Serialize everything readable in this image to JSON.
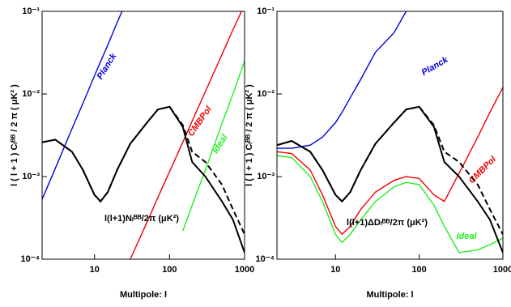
{
  "chart_data": [
    {
      "type": "line",
      "xscale": "log",
      "yscale": "log",
      "xlabel": "Multipole: l",
      "ylabel": "l ( l + 1 ) Cₗᴮᴮ / 2 π ( μK² )",
      "xlim": [
        2,
        1000
      ],
      "ylim": [
        0.0001,
        0.1
      ],
      "xticks": [
        10,
        100,
        1000
      ],
      "yticks": [
        {
          "value": 0.0001,
          "label": "10⁻⁴"
        },
        {
          "value": 0.001,
          "label": "10⁻³"
        },
        {
          "value": 0.01,
          "label": "10⁻²"
        },
        {
          "value": 0.1,
          "label": "10⁻¹"
        }
      ],
      "x": [
        2,
        3,
        5,
        7,
        10,
        12,
        15,
        20,
        30,
        50,
        70,
        100,
        150,
        200,
        300,
        500,
        700,
        1000
      ],
      "series": [
        {
          "name": "Planck",
          "color": "#0000dd",
          "values": [
            0.00053,
            0.00126,
            0.0038,
            0.0077,
            0.0166,
            0.0245,
            0.039,
            0.073,
            0.17,
            null,
            null,
            null,
            null,
            null,
            null,
            null,
            null,
            null
          ]
        },
        {
          "name": "CMBPol",
          "color": "#ee0000",
          "values": [
            null,
            null,
            null,
            null,
            null,
            null,
            null,
            null,
            0.0001,
            0.00028,
            0.00056,
            0.00115,
            0.0026,
            0.0047,
            0.0107,
            0.03,
            0.06,
            0.12
          ]
        },
        {
          "name": "Ideal",
          "color": "#22ee22",
          "values": [
            null,
            null,
            null,
            null,
            null,
            null,
            null,
            null,
            null,
            null,
            null,
            null,
            0.00022,
            0.00045,
            0.0012,
            0.0044,
            0.01,
            0.025
          ]
        },
        {
          "color": "#000000",
          "values": [
            0.0026,
            0.0028,
            0.002,
            0.0012,
            0.0006,
            0.0005,
            0.00065,
            0.0012,
            0.0025,
            0.0045,
            0.0065,
            0.007,
            0.004,
            0.0015,
            0.001,
            0.0005,
            0.0003,
            0.00012
          ]
        },
        {
          "color": "#000000",
          "dash": true,
          "values": [
            0.0026,
            0.0028,
            0.002,
            0.0012,
            0.0006,
            0.0005,
            0.00065,
            0.0012,
            0.0025,
            0.0045,
            0.0065,
            0.007,
            0.0042,
            0.002,
            0.0015,
            0.0008,
            0.0004,
            0.0002
          ]
        }
      ],
      "annotations": [
        {
          "text": "l(l+1)Nₗᴮᴮ/2π (μK²)",
          "color": "#000000"
        }
      ]
    },
    {
      "type": "line",
      "xscale": "log",
      "yscale": "log",
      "xlabel": "Multipole: l",
      "ylabel": "l ( l + 1 ) Cₗᴮᴮ / 2 π ( μK² )",
      "xlim": [
        2,
        1000
      ],
      "ylim": [
        0.0001,
        0.1
      ],
      "xticks": [
        10,
        100,
        1000
      ],
      "yticks": [
        {
          "value": 0.0001,
          "label": "10⁻⁴"
        },
        {
          "value": 0.001,
          "label": "10⁻³"
        },
        {
          "value": 0.01,
          "label": "10⁻²"
        },
        {
          "value": 0.1,
          "label": "10⁻¹"
        }
      ],
      "x": [
        2,
        3,
        5,
        7,
        10,
        12,
        15,
        20,
        30,
        50,
        70,
        100,
        150,
        200,
        300,
        500,
        700,
        1000
      ],
      "series": [
        {
          "name": "Planck",
          "color": "#0000dd",
          "values": [
            0.0022,
            0.0022,
            0.0024,
            0.003,
            0.0045,
            0.006,
            0.009,
            0.015,
            0.032,
            0.055,
            0.1,
            null,
            null,
            null,
            null,
            null,
            null,
            null
          ]
        },
        {
          "name": "CMBPol",
          "color": "#ee0000",
          "values": [
            0.002,
            0.0019,
            0.0012,
            0.0006,
            0.00025,
            0.0002,
            0.00025,
            0.0004,
            0.00065,
            0.0009,
            0.001,
            0.00095,
            0.0006,
            0.0005,
            0.0011,
            0.003,
            0.006,
            0.012
          ]
        },
        {
          "name": "Ideal",
          "color": "#22ee22",
          "values": [
            0.0018,
            0.0017,
            0.001,
            0.0005,
            0.0002,
            0.00016,
            0.0002,
            0.0003,
            0.0005,
            0.00075,
            0.00085,
            0.0008,
            0.00045,
            0.00025,
            0.00012,
            0.00013,
            0.00015,
            0.00018
          ]
        },
        {
          "color": "#000000",
          "values": [
            0.0024,
            0.0027,
            0.002,
            0.0012,
            0.0006,
            0.0005,
            0.00065,
            0.0012,
            0.0025,
            0.0045,
            0.0065,
            0.007,
            0.004,
            0.0015,
            0.001,
            0.0005,
            0.0003,
            0.00012
          ]
        },
        {
          "color": "#000000",
          "dash": true,
          "values": [
            0.0024,
            0.0027,
            0.002,
            0.0012,
            0.0006,
            0.0005,
            0.00065,
            0.0012,
            0.0025,
            0.0045,
            0.0065,
            0.007,
            0.0042,
            0.002,
            0.0015,
            0.0008,
            0.0004,
            0.0002
          ]
        }
      ],
      "annotations": [
        {
          "text": "l(l+1)ΔDₗᴮᴮ/2π (μK²)",
          "color": "#000000"
        }
      ]
    }
  ]
}
